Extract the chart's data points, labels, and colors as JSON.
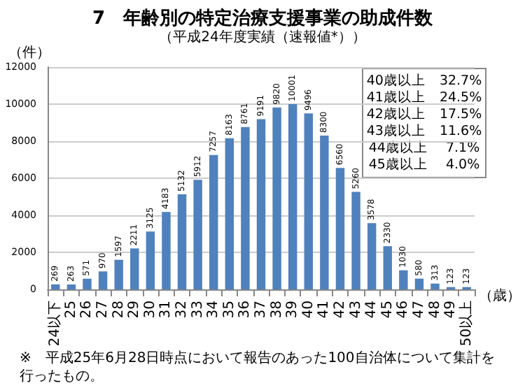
{
  "chart_data": {
    "type": "bar",
    "title": "7　年齢別の特定治療支援事業の助成件数",
    "subtitle": "（平成24年度実績（速報値*））",
    "ylabel": "（件）",
    "xlabel": "（歳）",
    "categories": [
      "24以下",
      "25",
      "26",
      "27",
      "28",
      "29",
      "30",
      "31",
      "32",
      "33",
      "34",
      "35",
      "36",
      "37",
      "38",
      "39",
      "40",
      "41",
      "42",
      "43",
      "44",
      "45",
      "46",
      "47",
      "48",
      "49",
      "50以上"
    ],
    "values": [
      269,
      263,
      571,
      970,
      1597,
      2211,
      3125,
      4183,
      5132,
      5912,
      7257,
      8163,
      8761,
      9191,
      9820,
      10001,
      9496,
      8300,
      6560,
      5260,
      3578,
      2330,
      1030,
      580,
      313,
      123,
      123
    ],
    "color": "#4f81bd",
    "data_labels": true,
    "grid": "y",
    "ylim": [
      0,
      12000
    ],
    "yticks": [
      0,
      2000,
      4000,
      6000,
      8000,
      10000,
      12000
    ],
    "annotations": [
      "40歳以上　32.7%",
      "41歳以上　24.5%",
      "42歳以上　17.5%",
      "43歳以上　11.6%",
      "44歳以上　 7.1%",
      "45歳以上　 4.0%",
      "※　平成25年6月28日時点において報告のあった100自治体について集計を行ったもの。"
    ]
  }
}
